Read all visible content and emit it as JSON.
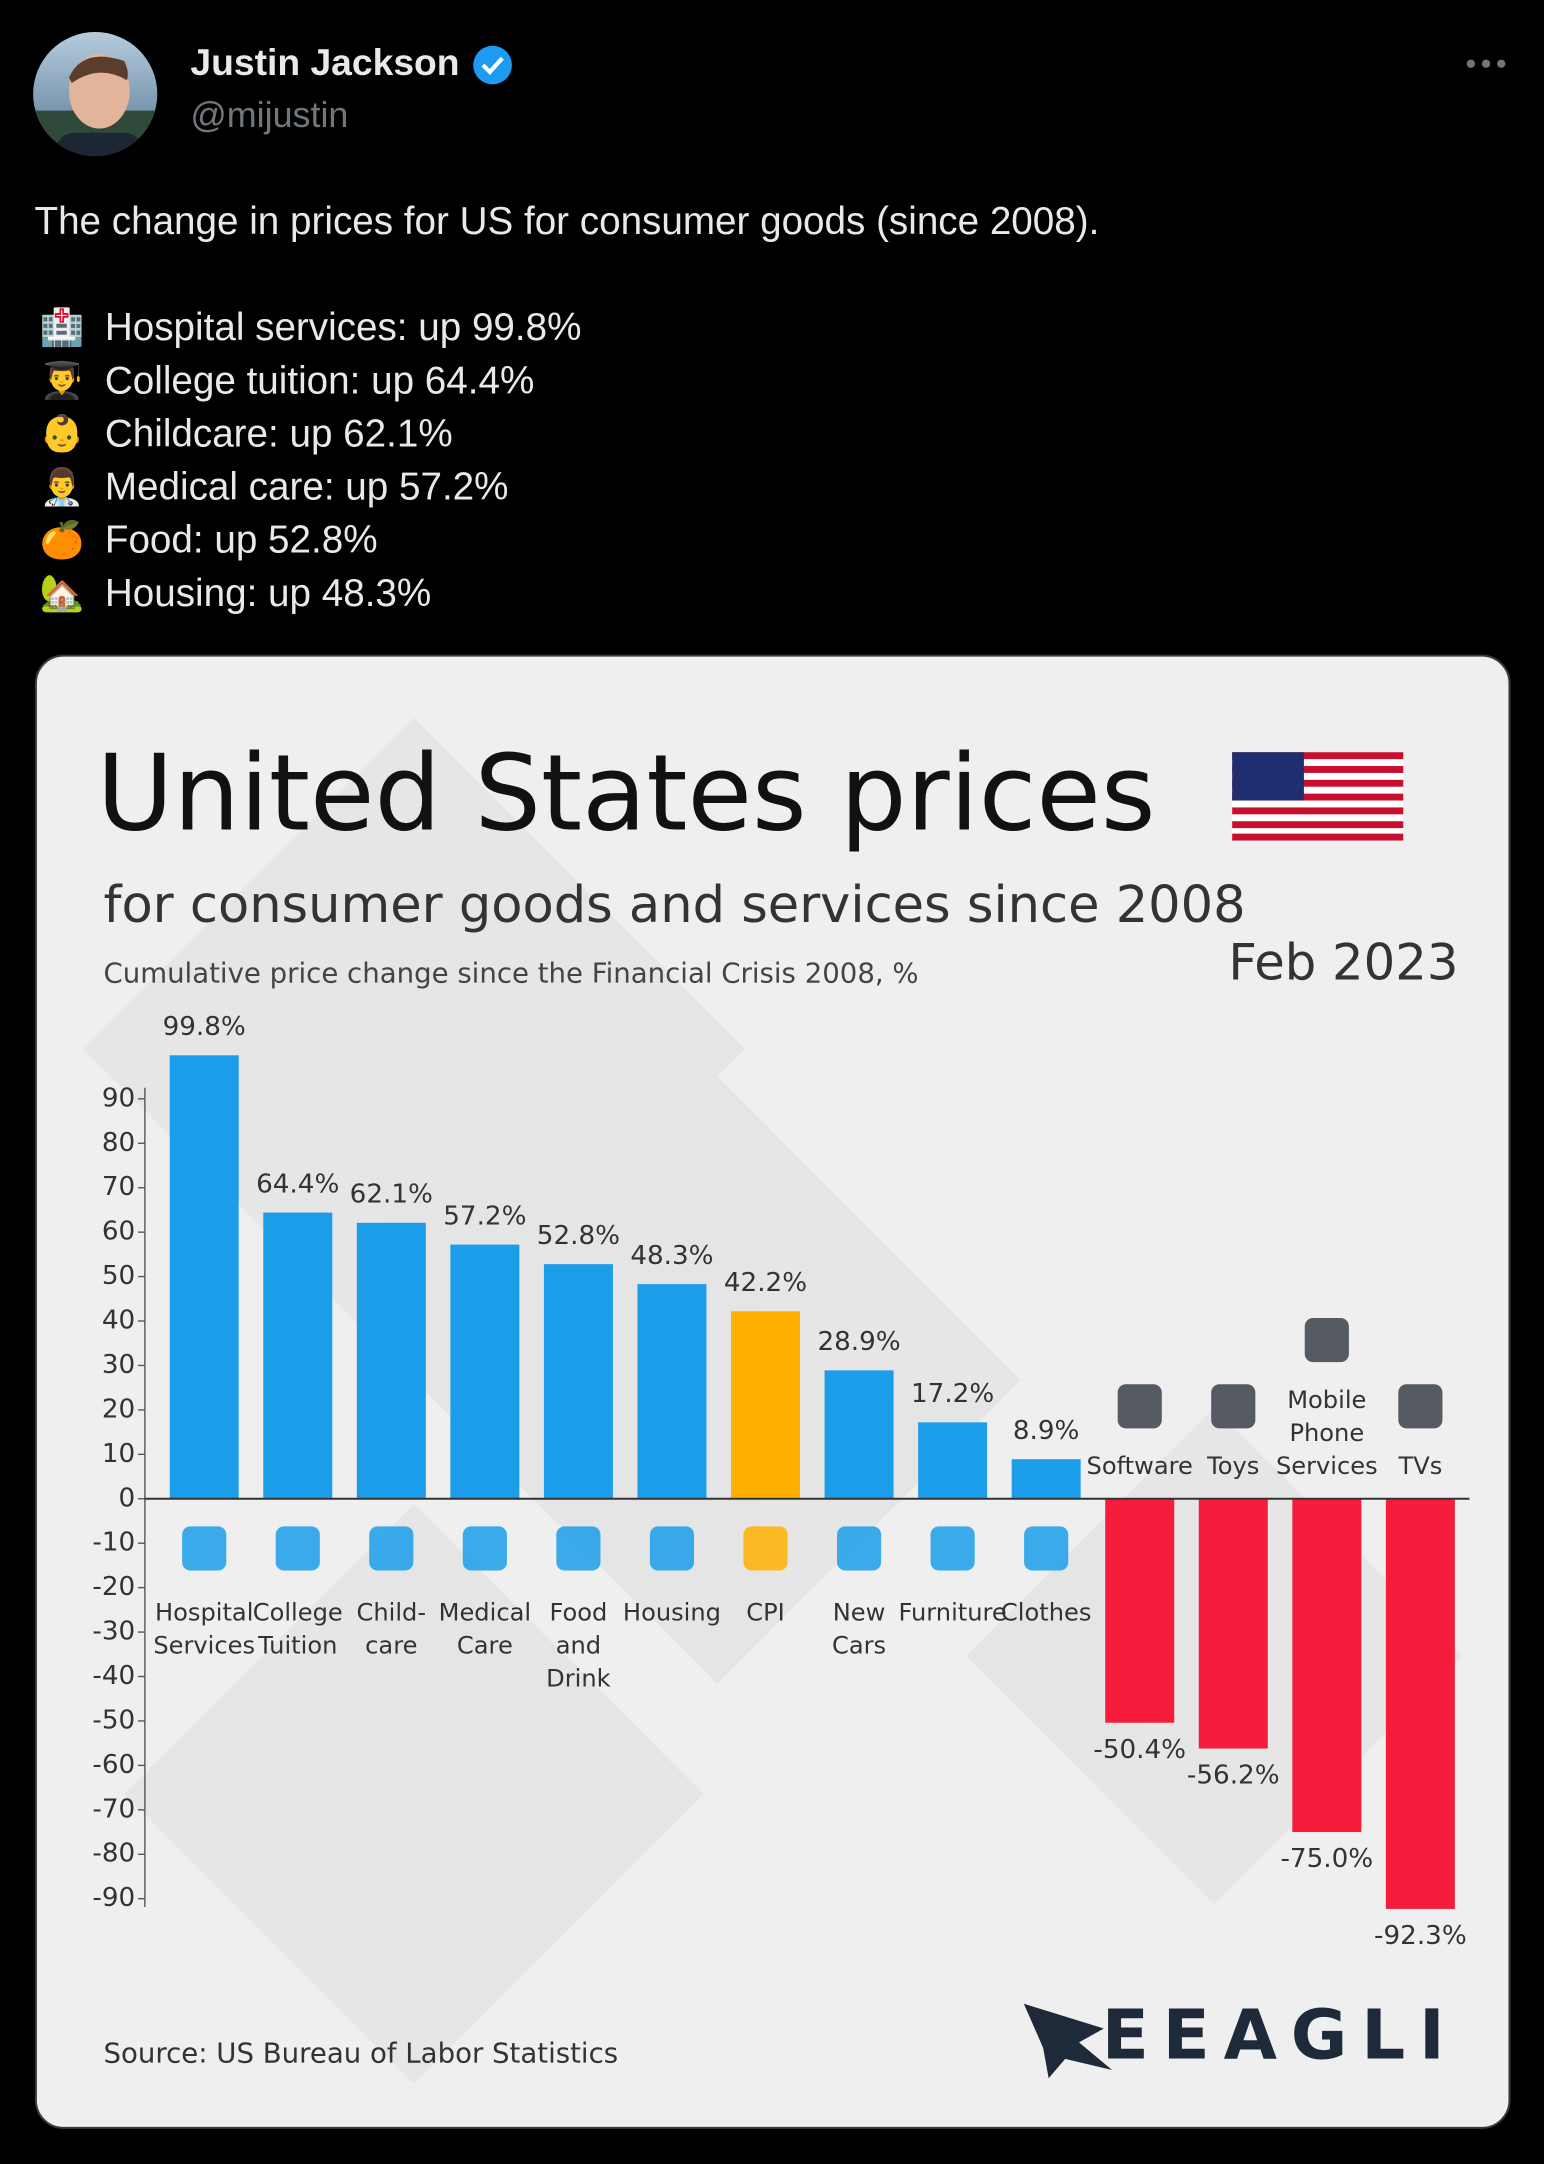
{
  "tweet": {
    "name": "Justin Jackson",
    "handle": "@mijustin",
    "text": "The change in prices for US for consumer goods (since 2008).",
    "items": [
      {
        "emoji": "🏥",
        "text": "Hospital services: up 99.8%"
      },
      {
        "emoji": "👨‍🎓",
        "text": "College tuition: up 64.4%"
      },
      {
        "emoji": "👶",
        "text": "Childcare: up 62.1%"
      },
      {
        "emoji": "👨‍⚕️",
        "text": "Medical care: up 57.2%"
      },
      {
        "emoji": "🍊",
        "text": "Food: up 52.8%"
      },
      {
        "emoji": "🏡",
        "text": "Housing: up 48.3%"
      }
    ]
  },
  "chart_data": {
    "type": "bar",
    "title": "United States prices",
    "subtitle": "for consumer goods and services since 2008",
    "description": "Cumulative price change since the Financial Crisis 2008, %",
    "date": "Feb 2023",
    "source": "Source: US Bureau of Labor Statistics",
    "brand": "EEAGLI",
    "categories": [
      [
        "Hospital",
        "Services"
      ],
      [
        "College",
        "Tuition"
      ],
      [
        "Child-",
        "care"
      ],
      [
        "Medical",
        "Care"
      ],
      [
        "Food",
        "and",
        "Drink"
      ],
      [
        "Housing"
      ],
      [
        "CPI"
      ],
      [
        "New",
        "Cars"
      ],
      [
        "Furniture"
      ],
      [
        "Clothes"
      ],
      [
        "Software"
      ],
      [
        "Toys"
      ],
      [
        "Mobile",
        "Phone",
        "Services"
      ],
      [
        "TVs"
      ]
    ],
    "values": [
      99.8,
      64.4,
      62.1,
      57.2,
      52.8,
      48.3,
      42.2,
      28.9,
      17.2,
      8.9,
      -50.4,
      -56.2,
      -75.0,
      -92.3
    ],
    "value_labels": [
      "99.8%",
      "64.4%",
      "62.1%",
      "57.2%",
      "52.8%",
      "48.3%",
      "42.2%",
      "28.9%",
      "17.2%",
      "8.9%",
      "-50.4%",
      "-56.2%",
      "-75.0%",
      "-92.3%"
    ],
    "colors": [
      "#1b9de9",
      "#1b9de9",
      "#1b9de9",
      "#1b9de9",
      "#1b9de9",
      "#1b9de9",
      "#ffb000",
      "#1b9de9",
      "#1b9de9",
      "#1b9de9",
      "#f51d3b",
      "#f51d3b",
      "#f51d3b",
      "#f51d3b"
    ],
    "ylim": [
      -95,
      100
    ],
    "yticks": [
      90,
      80,
      70,
      60,
      50,
      40,
      30,
      20,
      10,
      0,
      -10,
      -20,
      -30,
      -40,
      -50,
      -60,
      -70,
      -80,
      -90
    ],
    "grid": false
  }
}
